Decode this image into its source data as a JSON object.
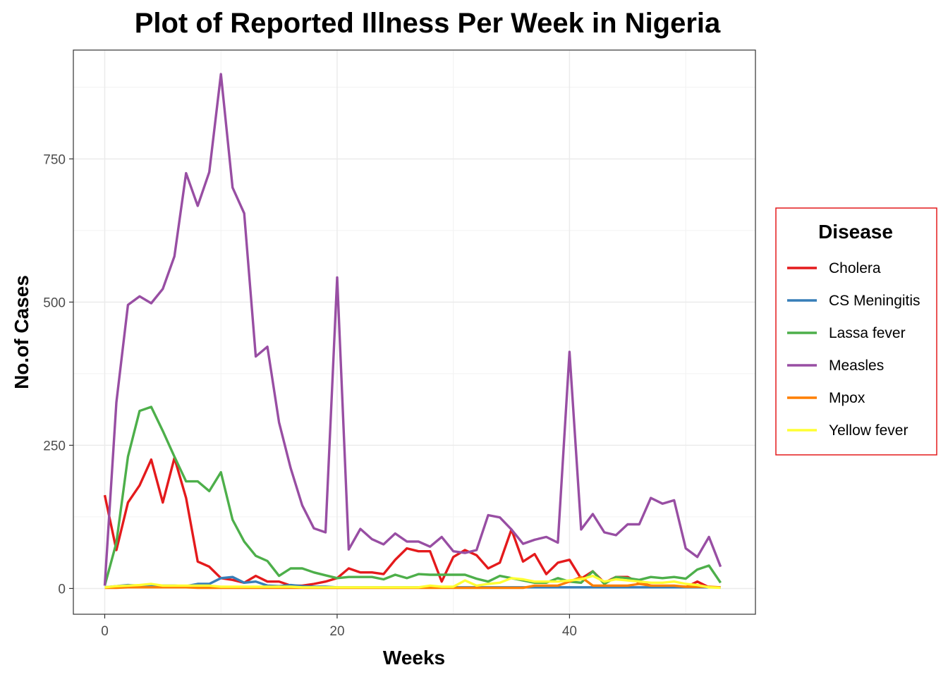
{
  "chart_data": {
    "type": "line",
    "title": "Plot of Reported Illness Per Week in Nigeria",
    "xlabel": "Weeks",
    "ylabel": "No.of Cases",
    "xlim": [
      -2.7,
      56
    ],
    "ylim": [
      -45,
      940
    ],
    "x_ticks": [
      0,
      20,
      40
    ],
    "x_tick_labels": [
      "0",
      "20",
      "40"
    ],
    "y_ticks": [
      0,
      250,
      500,
      750
    ],
    "y_tick_labels": [
      "0",
      "250",
      "500",
      "750"
    ],
    "grid": true,
    "legend": {
      "title": "Disease",
      "placement": "right"
    },
    "x": [
      0,
      1,
      2,
      3,
      4,
      5,
      6,
      7,
      8,
      9,
      10,
      11,
      12,
      13,
      14,
      15,
      16,
      17,
      18,
      19,
      20,
      21,
      22,
      23,
      24,
      25,
      26,
      27,
      28,
      29,
      30,
      31,
      32,
      33,
      34,
      35,
      36,
      37,
      38,
      39,
      40,
      41,
      42,
      43,
      44,
      45,
      46,
      47,
      48,
      49,
      50,
      51,
      52,
      53
    ],
    "series": [
      {
        "name": "Cholera",
        "color": "#E41A1C",
        "values": [
          163,
          67,
          150,
          180,
          225,
          150,
          228,
          158,
          47,
          38,
          18,
          15,
          10,
          22,
          12,
          12,
          5,
          5,
          8,
          12,
          18,
          35,
          28,
          28,
          25,
          50,
          70,
          65,
          65,
          12,
          55,
          67,
          58,
          35,
          45,
          103,
          47,
          60,
          25,
          45,
          50,
          17,
          30,
          10,
          20,
          20,
          10,
          5,
          3,
          2,
          2,
          12,
          2,
          2
        ]
      },
      {
        "name": "CS Meningitis",
        "color": "#377EB8",
        "values": [
          2,
          4,
          6,
          5,
          6,
          5,
          5,
          4,
          8,
          8,
          18,
          20,
          10,
          12,
          5,
          4,
          6,
          4,
          3,
          3,
          2,
          2,
          2,
          2,
          2,
          2,
          2,
          2,
          2,
          2,
          2,
          2,
          2,
          2,
          2,
          2,
          2,
          2,
          2,
          2,
          2,
          2,
          2,
          2,
          2,
          2,
          2,
          2,
          2,
          2,
          2,
          2,
          2,
          2
        ]
      },
      {
        "name": "Lassa fever",
        "color": "#4DAF4A",
        "values": [
          5,
          80,
          230,
          310,
          317,
          275,
          230,
          187,
          187,
          170,
          203,
          120,
          82,
          57,
          48,
          22,
          35,
          35,
          28,
          23,
          18,
          20,
          20,
          20,
          16,
          24,
          18,
          25,
          24,
          24,
          24,
          24,
          17,
          12,
          22,
          18,
          14,
          10,
          10,
          18,
          12,
          10,
          30,
          8,
          20,
          18,
          15,
          20,
          18,
          20,
          17,
          33,
          40,
          10
        ]
      },
      {
        "name": "Measles",
        "color": "#984EA3",
        "values": [
          5,
          325,
          495,
          510,
          498,
          523,
          580,
          725,
          668,
          727,
          898,
          700,
          655,
          405,
          422,
          290,
          210,
          145,
          105,
          98,
          543,
          68,
          104,
          86,
          77,
          96,
          82,
          82,
          73,
          90,
          65,
          62,
          67,
          128,
          124,
          103,
          78,
          85,
          90,
          80,
          413,
          103,
          130,
          98,
          93,
          112,
          112,
          158,
          148,
          154,
          70,
          55,
          90,
          38
        ]
      },
      {
        "name": "Mpox",
        "color": "#FF7F00",
        "values": [
          1,
          1,
          2,
          2,
          2,
          2,
          2,
          2,
          1,
          1,
          1,
          1,
          1,
          1,
          1,
          1,
          1,
          1,
          1,
          1,
          1,
          1,
          1,
          1,
          1,
          1,
          1,
          1,
          1,
          1,
          1,
          1,
          1,
          1,
          1,
          1,
          1,
          5,
          5,
          5,
          12,
          20,
          5,
          5,
          5,
          5,
          8,
          5,
          5,
          5,
          3,
          3,
          3,
          2
        ]
      },
      {
        "name": "Yellow fever",
        "color": "#FFFF33",
        "values": [
          2,
          4,
          5,
          6,
          8,
          5,
          5,
          5,
          5,
          5,
          3,
          3,
          3,
          3,
          3,
          3,
          3,
          2,
          2,
          2,
          2,
          2,
          2,
          2,
          2,
          2,
          2,
          2,
          5,
          3,
          3,
          14,
          5,
          8,
          10,
          18,
          16,
          12,
          12,
          12,
          14,
          16,
          22,
          12,
          16,
          14,
          12,
          10,
          10,
          12,
          8,
          6,
          2,
          1
        ]
      }
    ]
  }
}
